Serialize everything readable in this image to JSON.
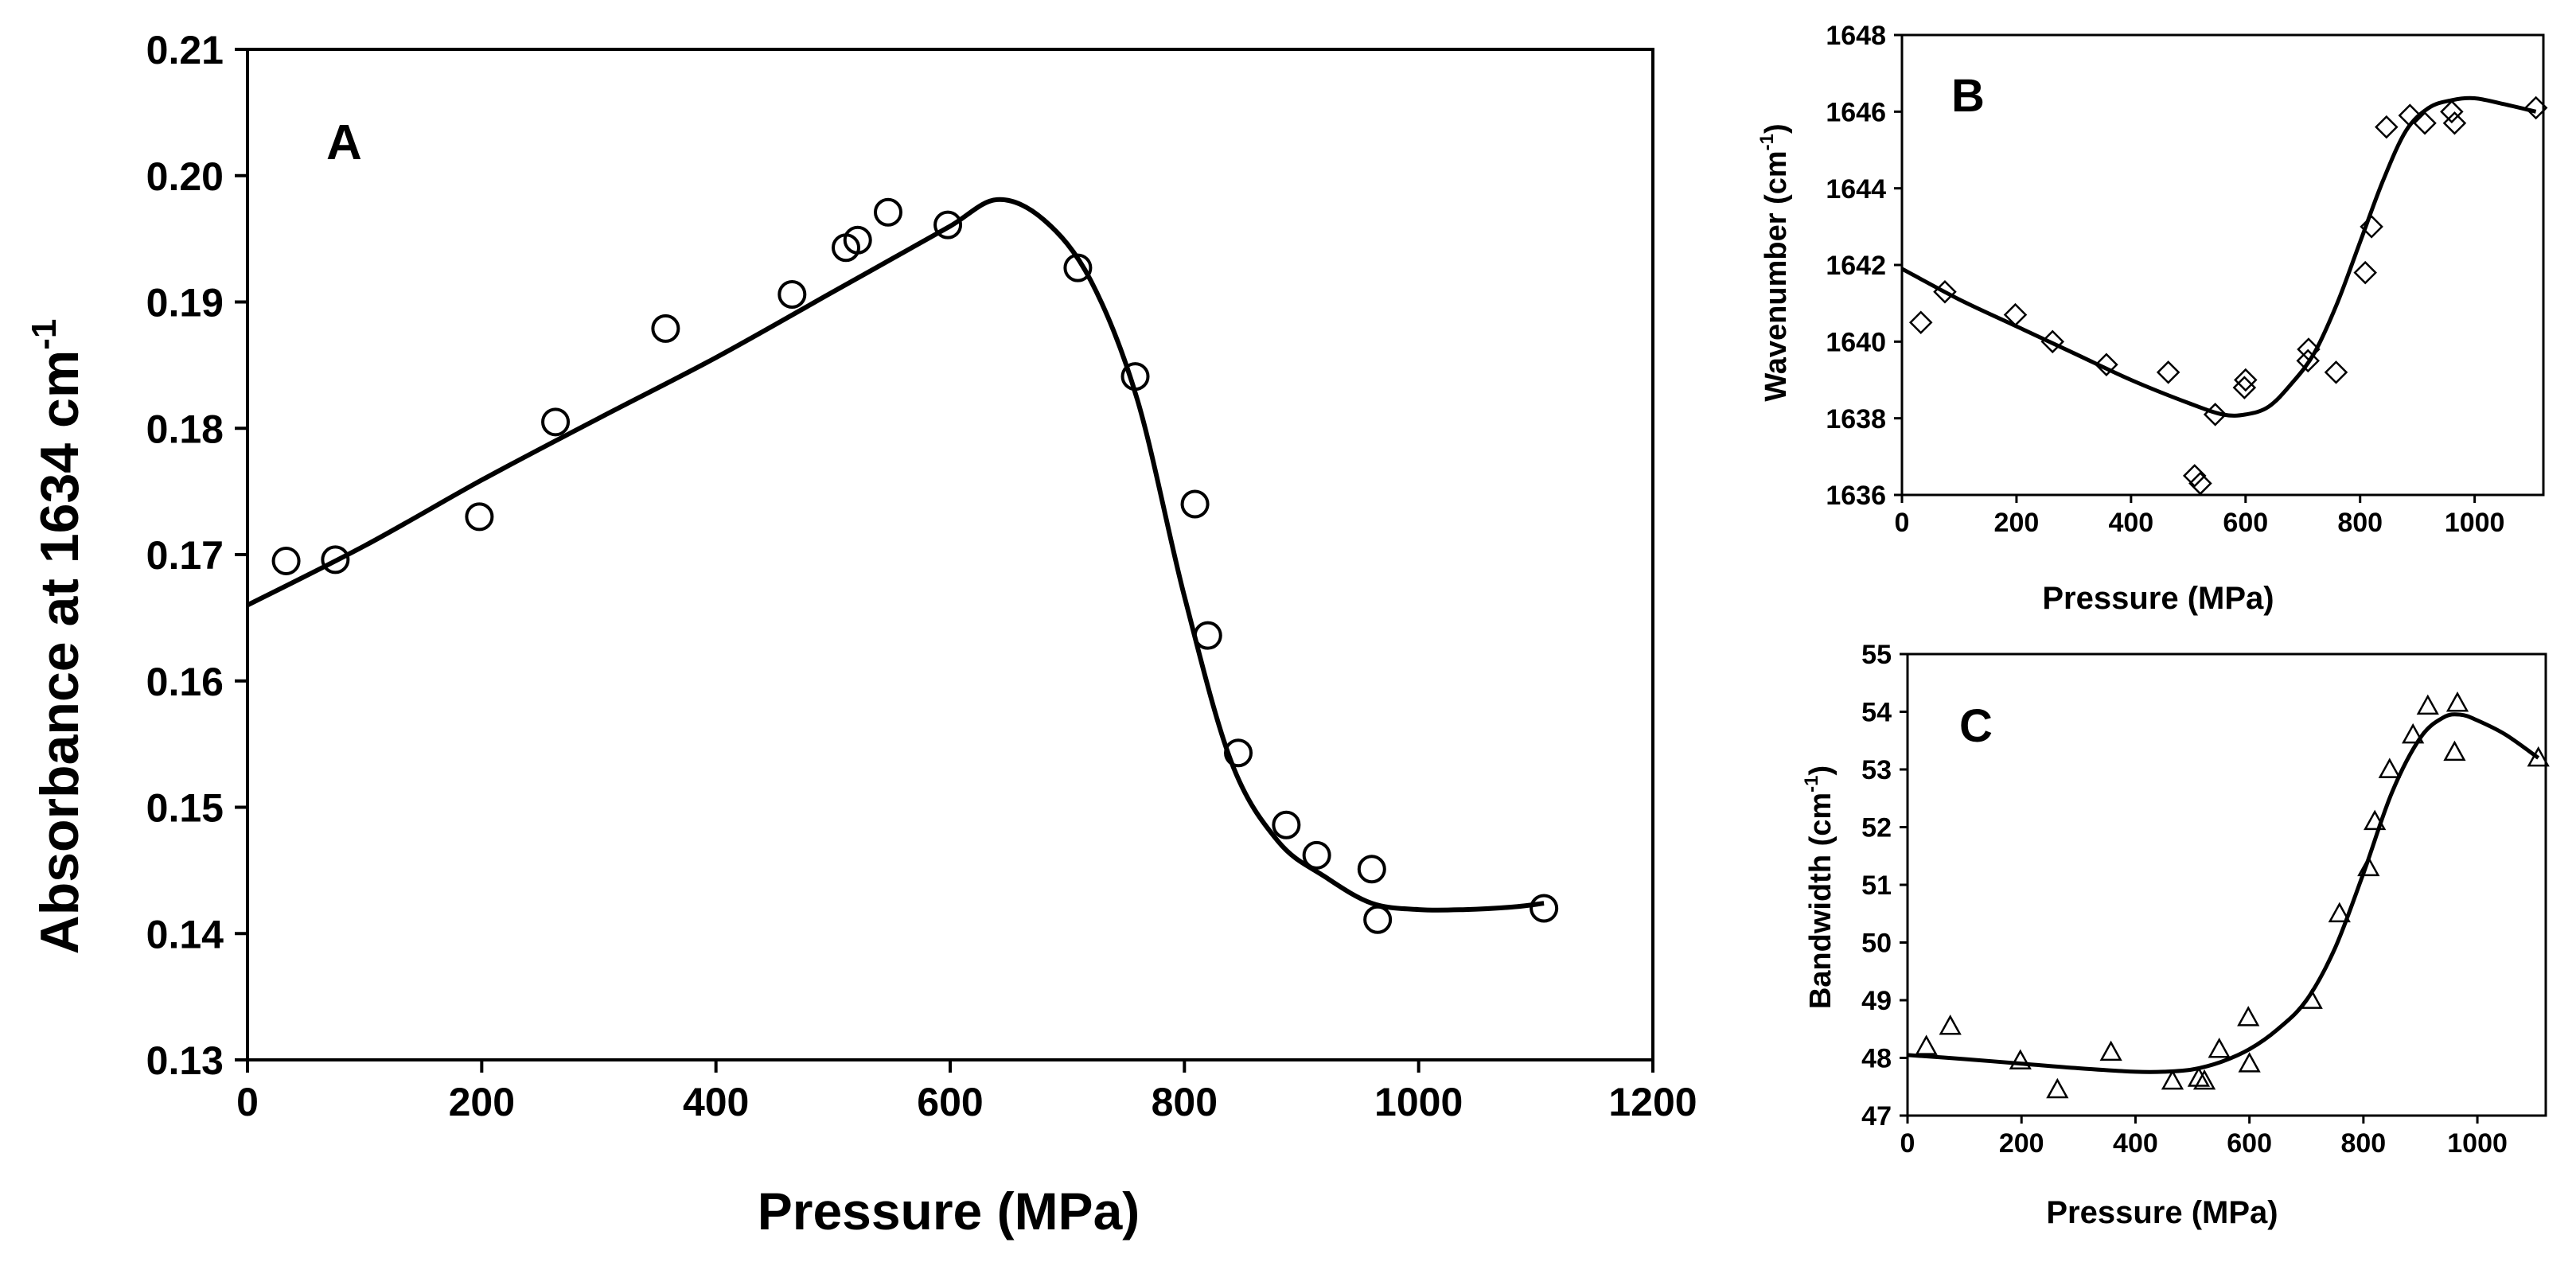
{
  "figure": {
    "background": "#ffffff",
    "ink": "#000000"
  },
  "chart_data": [
    {
      "panel": "A",
      "type": "scatter",
      "marker": "circle",
      "xlabel": "Pressure (MPa)",
      "ylabel": "Absorbance at 1634 cm-1",
      "ylabel_base": "Absorbance at 1634 cm",
      "ylabel_sup": "-1",
      "xlim": [
        0,
        1200
      ],
      "ylim": [
        0.13,
        0.21
      ],
      "xticks": [
        "0",
        "200",
        "400",
        "600",
        "800",
        "1000",
        "1200"
      ],
      "yticks": [
        "0.13",
        "0.14",
        "0.15",
        "0.16",
        "0.17",
        "0.18",
        "0.19",
        "0.20",
        "0.21"
      ],
      "points": {
        "x": [
          33,
          75,
          198,
          263,
          357,
          465,
          511,
          521,
          547,
          598,
          709,
          758,
          809,
          820,
          846,
          887,
          913,
          960,
          965,
          1107
        ],
        "y": [
          0.1695,
          0.1696,
          0.173,
          0.1805,
          0.1879,
          0.1906,
          0.1943,
          0.1949,
          0.1971,
          0.1961,
          0.1927,
          0.1841,
          0.174,
          0.1636,
          0.1543,
          0.1486,
          0.1462,
          0.1451,
          0.1411,
          0.142
        ]
      },
      "fit": {
        "x": [
          0,
          100,
          200,
          300,
          400,
          500,
          550,
          600,
          640,
          680,
          720,
          760,
          800,
          840,
          880,
          920,
          960,
          1000,
          1040,
          1080,
          1107
        ],
        "y": [
          0.166,
          0.1707,
          0.1759,
          0.1808,
          0.1856,
          0.1908,
          0.1934,
          0.196,
          0.1981,
          0.1965,
          0.1917,
          0.1822,
          0.1667,
          0.1536,
          0.1473,
          0.1445,
          0.1424,
          0.1419,
          0.1419,
          0.1421,
          0.1424
        ]
      }
    },
    {
      "panel": "B",
      "type": "scatter",
      "marker": "diamond",
      "xlabel": "Pressure (MPa)",
      "ylabel": "Wavenumber (cm-1)",
      "ylabel_base": "Wavenumber (cm",
      "ylabel_sup": "-1",
      "ylabel_close": ")",
      "xlim": [
        0,
        1120
      ],
      "ylim": [
        1636,
        1648
      ],
      "xticks": [
        "0",
        "200",
        "400",
        "600",
        "800",
        "1000"
      ],
      "yticks": [
        "1636",
        "1638",
        "1640",
        "1642",
        "1644",
        "1646",
        "1648"
      ],
      "points": {
        "x": [
          33,
          75,
          198,
          263,
          357,
          465,
          511,
          521,
          547,
          598,
          600,
          709,
          710,
          758,
          809,
          820,
          846,
          887,
          913,
          960,
          965,
          1107
        ],
        "y": [
          1640.5,
          1641.3,
          1640.7,
          1640.0,
          1639.4,
          1639.2,
          1636.5,
          1636.3,
          1638.1,
          1638.8,
          1639.0,
          1639.5,
          1639.8,
          1639.2,
          1641.8,
          1643.0,
          1645.6,
          1645.9,
          1645.7,
          1646.0,
          1645.7,
          1646.1
        ]
      },
      "fit": {
        "x": [
          0,
          100,
          200,
          300,
          400,
          500,
          560,
          600,
          640,
          680,
          720,
          760,
          800,
          840,
          880,
          920,
          960,
          1000,
          1050,
          1107
        ],
        "y": [
          1641.9,
          1641.1,
          1640.4,
          1639.7,
          1639.0,
          1638.4,
          1638.1,
          1638.1,
          1638.3,
          1638.9,
          1639.7,
          1641.0,
          1642.6,
          1644.2,
          1645.5,
          1646.1,
          1646.3,
          1646.35,
          1646.2,
          1646.0
        ]
      }
    },
    {
      "panel": "C",
      "type": "scatter",
      "marker": "triangle",
      "xlabel": "Pressure (MPa)",
      "ylabel": "Bandwidth (cm-1)",
      "ylabel_base": "Bandwidth (cm",
      "ylabel_sup": "-1",
      "ylabel_close": ")",
      "xlim": [
        0,
        1120
      ],
      "ylim": [
        47,
        55
      ],
      "xticks": [
        "0",
        "200",
        "400",
        "600",
        "800",
        "1000"
      ],
      "yticks": [
        "47",
        "48",
        "49",
        "50",
        "51",
        "52",
        "53",
        "54",
        "55"
      ],
      "points": {
        "x": [
          33,
          75,
          198,
          263,
          357,
          465,
          511,
          521,
          547,
          598,
          600,
          709,
          758,
          809,
          820,
          846,
          887,
          913,
          960,
          965,
          1107
        ],
        "y": [
          48.2,
          48.55,
          47.95,
          47.45,
          48.1,
          47.6,
          47.65,
          47.6,
          48.15,
          48.7,
          47.9,
          49.0,
          50.5,
          51.3,
          52.1,
          53.0,
          53.6,
          54.1,
          53.3,
          54.15,
          53.2
        ]
      },
      "fit": {
        "x": [
          0,
          100,
          200,
          300,
          400,
          450,
          500,
          550,
          600,
          650,
          700,
          750,
          800,
          850,
          900,
          940,
          970,
          1000,
          1050,
          1107
        ],
        "y": [
          48.05,
          47.98,
          47.9,
          47.82,
          47.76,
          47.76,
          47.8,
          47.93,
          48.15,
          48.5,
          49.0,
          49.9,
          51.2,
          52.6,
          53.55,
          53.9,
          53.95,
          53.85,
          53.6,
          53.2
        ]
      }
    }
  ]
}
